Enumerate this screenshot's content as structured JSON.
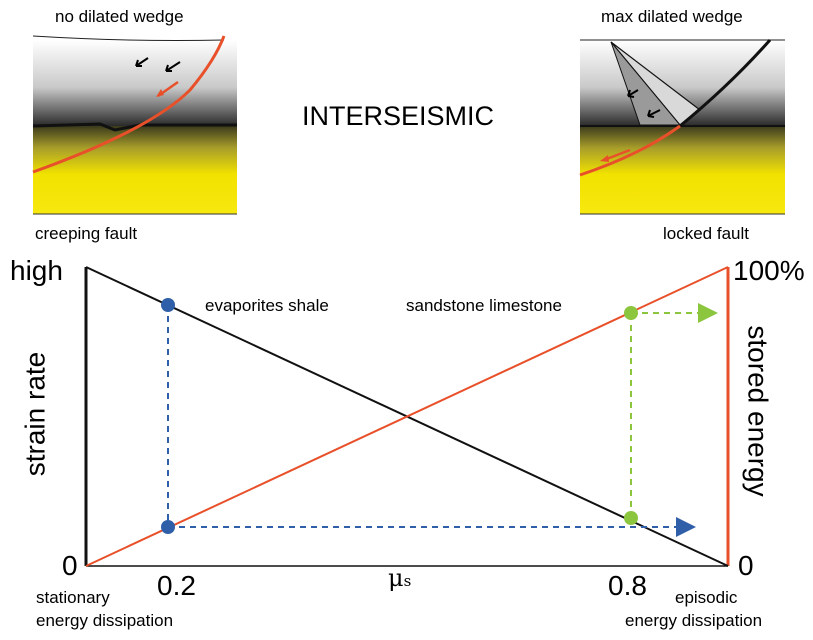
{
  "insets": {
    "left_top_label": "no dilated wedge",
    "left_bottom_label": "creeping fault",
    "right_top_label": "max dilated wedge",
    "right_bottom_label": "locked fault",
    "center_title": "INTERSEISMIC"
  },
  "axes": {
    "y_left_top": "high",
    "y_left_bottom": "0",
    "y_left_label": "strain rate",
    "y_right_top": "100%",
    "y_right_bottom": "0",
    "y_right_label": "stored energy",
    "x_label_mu": "μ",
    "x_label_sub": "s",
    "x_tick_1": "0.2",
    "x_tick_2": "0.8",
    "x_left_caption_1": "stationary",
    "x_left_caption_2": "energy dissipation",
    "x_right_caption_1": "episodic",
    "x_right_caption_2": "energy dissipation"
  },
  "materials": {
    "left_group": "evaporites  shale",
    "right_group": "sandstone  limestone"
  },
  "colors": {
    "strain_line": "#111111",
    "energy_line": "#e8502a",
    "blue_marker": "#2f5fa8",
    "green_marker": "#8cc63f",
    "yellow": "#f5e400",
    "fault_red": "#e8502a"
  },
  "chart_data": {
    "type": "line",
    "x_domain": [
      0,
      1
    ],
    "series": [
      {
        "name": "strain rate",
        "points": [
          [
            0,
            1
          ],
          [
            1,
            0
          ]
        ]
      },
      {
        "name": "stored energy",
        "points": [
          [
            0,
            0
          ],
          [
            1,
            1
          ]
        ]
      }
    ],
    "markers": [
      {
        "x": 0.2,
        "strain_rate": 0.8,
        "stored_energy": 0.2
      },
      {
        "x": 0.8,
        "strain_rate": 0.2,
        "stored_energy": 0.8
      }
    ]
  }
}
